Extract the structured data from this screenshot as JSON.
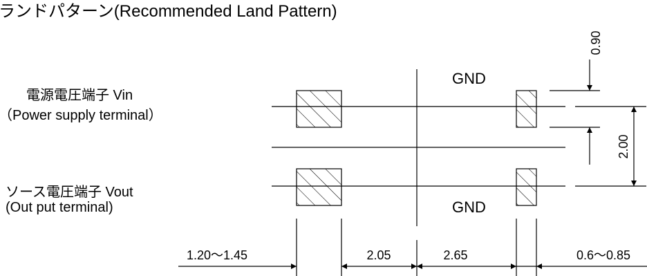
{
  "title": "ランドパターン(Recommended Land Pattern)",
  "labels": {
    "vin_jp": "電源電圧端子 Vin",
    "vin_en": "（Power supply terminal）",
    "vout_jp": "ソース電圧端子 Vout",
    "vout_en": "(Out put terminal)",
    "gnd_top": "GND",
    "gnd_bottom": "GND"
  },
  "dimensions": {
    "d_0_90": "0.90",
    "d_2_00": "2.00",
    "d_left": "1.20～1.45",
    "d_2_05": "2.05",
    "d_2_65": "2.65",
    "d_right": "0.6～0.85"
  }
}
